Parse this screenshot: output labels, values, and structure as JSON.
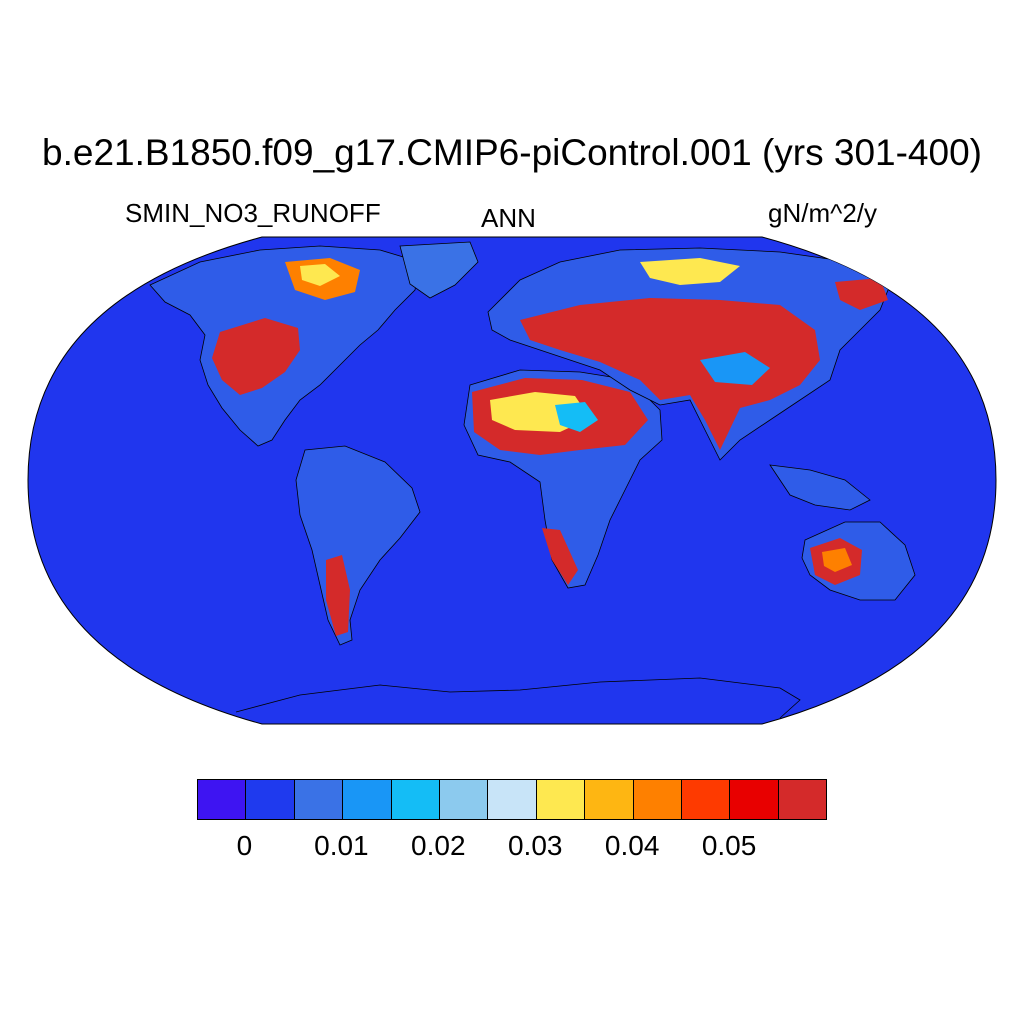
{
  "title": "b.e21.B1850.f09_g17.CMIP6-piControl.001 (yrs 301-400)",
  "variable": "SMIN_NO3_RUNOFF",
  "season": "ANN",
  "units": "gN/m^2/y",
  "colors": {
    "ocean": "#2036ee",
    "high": "#d42a2a"
  },
  "colorbar": {
    "colors": [
      "#3e14f2",
      "#1f3aee",
      "#3a72e6",
      "#1996f6",
      "#14bdf6",
      "#8ccaee",
      "#c8e4f8",
      "#fee850",
      "#feb612",
      "#fe8000",
      "#fe3a00",
      "#e80000",
      "#d42a2a"
    ],
    "tick_labels": [
      "0",
      "0.01",
      "0.02",
      "0.03",
      "0.04",
      "0.05"
    ],
    "tick_values": [
      0,
      0.01,
      0.02,
      0.03,
      0.04,
      0.05
    ]
  }
}
